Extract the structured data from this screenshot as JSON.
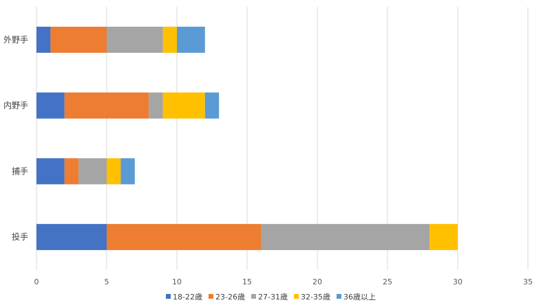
{
  "chart_data": {
    "type": "bar",
    "orientation": "horizontal",
    "stacked": true,
    "categories": [
      "外野手",
      "内野手",
      "捕手",
      "投手"
    ],
    "series": [
      {
        "name": "18-22歳",
        "color": "#4472C4",
        "values": [
          1,
          2,
          2,
          5
        ]
      },
      {
        "name": "23-26歳",
        "color": "#ED7D31",
        "values": [
          4,
          6,
          1,
          11
        ]
      },
      {
        "name": "27-31歳",
        "color": "#A5A5A5",
        "values": [
          4,
          1,
          2,
          12
        ]
      },
      {
        "name": "32-35歳",
        "color": "#FFC000",
        "values": [
          1,
          3,
          1,
          2
        ]
      },
      {
        "name": "36歳以上",
        "color": "#5B9BD5",
        "values": [
          2,
          1,
          1,
          0
        ]
      }
    ],
    "xticks": [
      "0",
      "5",
      "10",
      "15",
      "20",
      "25",
      "30",
      "35"
    ],
    "xlim": [
      0,
      35
    ],
    "title": "",
    "xlabel": "",
    "ylabel": "",
    "grid": "vertical",
    "legend_position": "bottom"
  }
}
